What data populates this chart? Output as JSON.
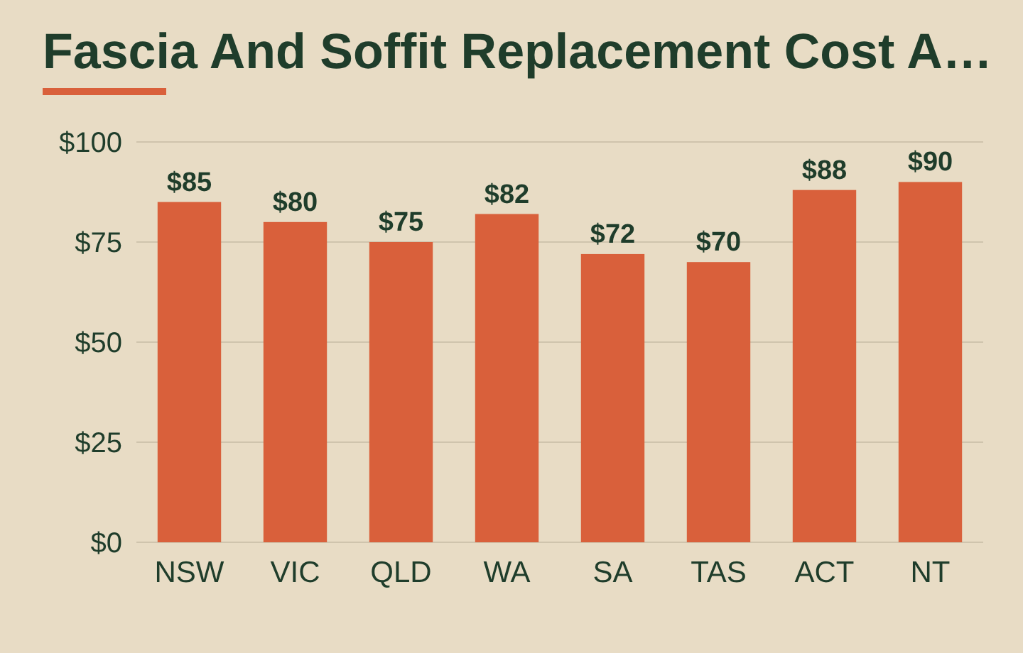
{
  "chart_data": {
    "type": "bar",
    "title": "Fascia And Soffit Replacement Cost A…",
    "categories": [
      "NSW",
      "VIC",
      "QLD",
      "WA",
      "SA",
      "TAS",
      "ACT",
      "NT"
    ],
    "values": [
      85,
      80,
      75,
      82,
      72,
      70,
      88,
      90
    ],
    "color": "#d9603b",
    "ylim": [
      0,
      100
    ],
    "yticks": [
      {
        "value": 0,
        "label": "$0"
      },
      {
        "value": 25,
        "label": "$25"
      },
      {
        "value": 50,
        "label": "$50"
      },
      {
        "value": 75,
        "label": "$75"
      },
      {
        "value": 100,
        "label": "$100"
      }
    ],
    "value_labels": [
      "$85",
      "$80",
      "$75",
      "$82",
      "$72",
      "$70",
      "$88",
      "$90"
    ],
    "grid": "y"
  }
}
